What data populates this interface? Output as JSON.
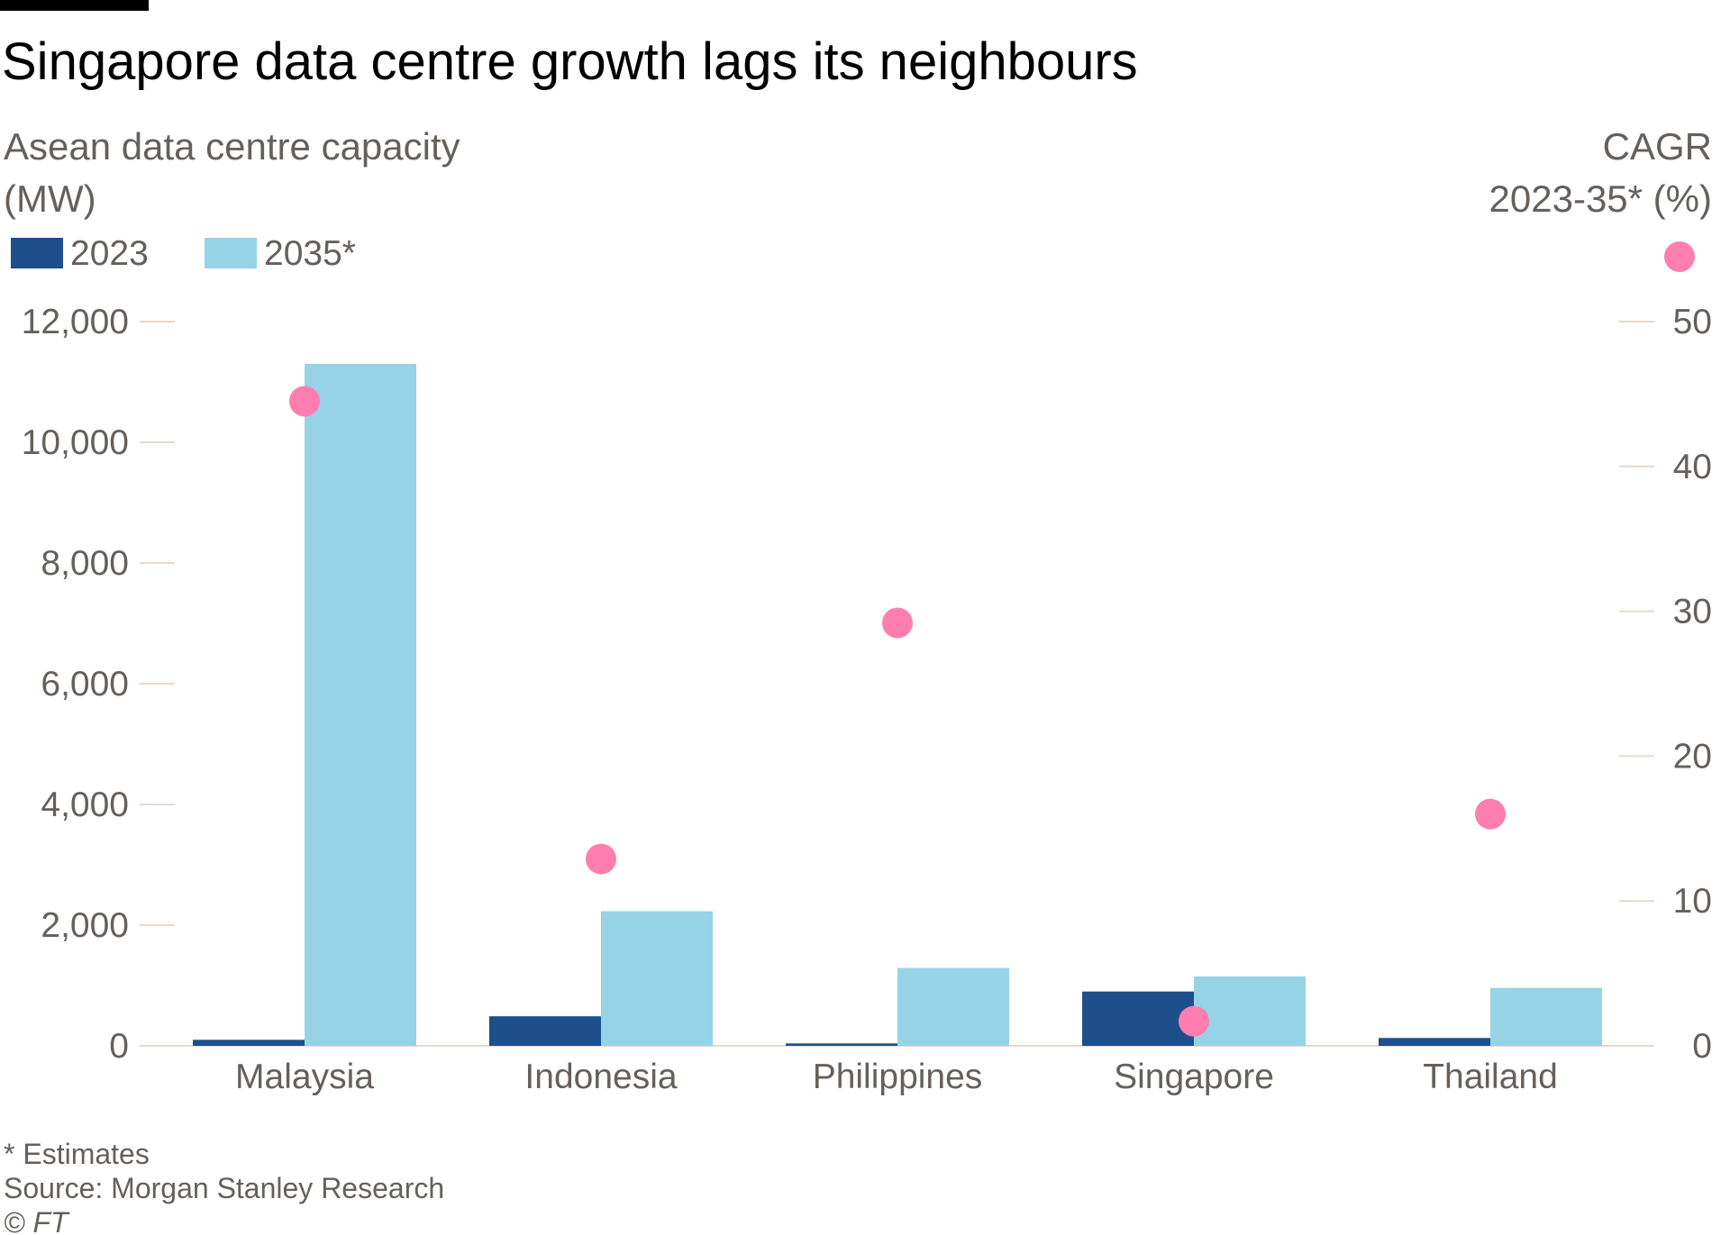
{
  "chart_data": {
    "type": "bar",
    "title": "Singapore data centre growth lags its neighbours",
    "left_axis_title_line1": "Asean data centre capacity",
    "left_axis_title_line2": "(MW)",
    "right_axis_title_line1": "CAGR",
    "right_axis_title_line2": "2023-35* (%)",
    "categories": [
      "Malaysia",
      "Indonesia",
      "Philippines",
      "Singapore",
      "Thailand"
    ],
    "series": [
      {
        "name": "2023",
        "axis": "left",
        "color": "#1d4f8a",
        "values": [
          100,
          490,
          40,
          900,
          130
        ]
      },
      {
        "name": "2035*",
        "axis": "left",
        "color": "#96d3e6",
        "values": [
          11300,
          2230,
          1290,
          1150,
          960
        ]
      }
    ],
    "cagr_points": {
      "axis": "right",
      "color": "#ff7eb0",
      "values": [
        44.5,
        12.9,
        29.2,
        1.7,
        16.0
      ]
    },
    "left_axis": {
      "min": 0,
      "max": 12000,
      "ticks": [
        "0",
        "2,000",
        "4,000",
        "6,000",
        "8,000",
        "10,000",
        "12,000"
      ]
    },
    "right_axis": {
      "min": 0,
      "max": 50,
      "ticks": [
        "0",
        "10",
        "20",
        "30",
        "40",
        "50"
      ]
    },
    "legend": {
      "placement": "top-left",
      "items": [
        "2023",
        "2035*"
      ]
    },
    "footnote": "* Estimates",
    "source": "Source: Morgan Stanley Research",
    "credit": "© FT"
  }
}
